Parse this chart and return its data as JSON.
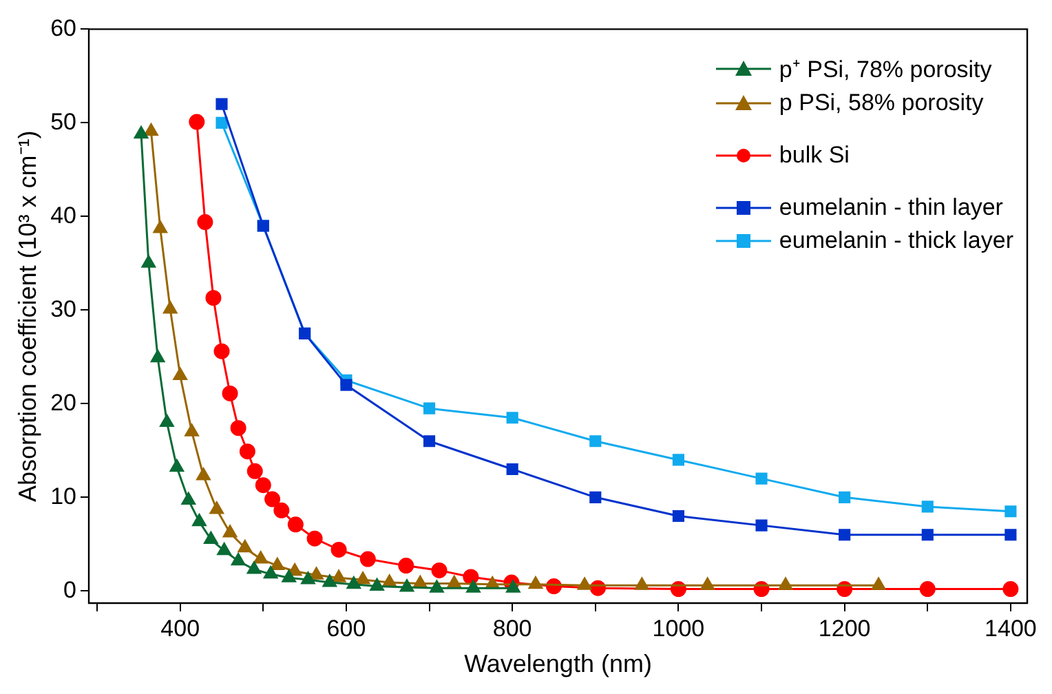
{
  "chart_data": {
    "type": "line",
    "xlabel": "Wavelength (nm)",
    "ylabel": "Absorption coefficient (10³ x cm⁻¹)",
    "xlim": [
      290,
      1420
    ],
    "ylim": [
      -1.3,
      60
    ],
    "xticks": [
      {
        "value": 300,
        "label": null
      },
      400,
      {
        "value": 500,
        "label": null
      },
      600,
      {
        "value": 700,
        "label": null
      },
      800,
      {
        "value": 900,
        "label": null
      },
      1000,
      {
        "value": 1100,
        "label": null
      },
      1200,
      {
        "value": 1300,
        "label": null
      },
      1400
    ],
    "yticks": [
      0,
      10,
      20,
      30,
      40,
      50,
      60
    ],
    "grid": false,
    "legend": "top right",
    "line_style": "solid",
    "series": [
      {
        "name": "p⁺ PSi, 78% porosity",
        "color": "#0a6b35",
        "marker": "triangle",
        "x": [
          353,
          362,
          373,
          384,
          396,
          410,
          423,
          437,
          453,
          470,
          489,
          509,
          531,
          554,
          580,
          609,
          637,
          673,
          709,
          753,
          801
        ],
        "values": [
          48.8,
          35,
          24.9,
          18,
          13.2,
          9.7,
          7.4,
          5.5,
          4.3,
          3.2,
          2.3,
          1.8,
          1.4,
          1.2,
          0.9,
          0.7,
          0.5,
          0.4,
          0.3,
          0.3,
          0.3
        ]
      },
      {
        "name": "p PSi, 58% porosity",
        "color": "#996600",
        "marker": "triangle",
        "x": [
          365,
          376,
          388,
          400,
          414,
          428,
          444,
          460,
          478,
          497,
          517,
          538,
          564,
          591,
          620,
          652,
          689,
          730,
          776,
          828,
          887,
          956,
          1035,
          1129,
          1241
        ],
        "values": [
          49.1,
          38.7,
          30.1,
          23,
          17,
          12.3,
          8.7,
          6.2,
          4.6,
          3.4,
          2.7,
          2.1,
          1.7,
          1.4,
          1.2,
          0.9,
          0.8,
          0.8,
          0.7,
          0.7,
          0.6,
          0.6,
          0.6,
          0.6,
          0.6
        ]
      },
      {
        "name": "bulk Si",
        "color": "#ff0000",
        "marker": "circle",
        "x": [
          420,
          430,
          440,
          450,
          460,
          470,
          481,
          490,
          500,
          511,
          522,
          539,
          562,
          591,
          626,
          672,
          712,
          750,
          799,
          850,
          903,
          1000,
          1100,
          1200,
          1300,
          1400
        ],
        "values": [
          50.1,
          39.4,
          31.3,
          25.6,
          21.1,
          17.4,
          14.9,
          12.8,
          11.3,
          9.8,
          8.6,
          7.1,
          5.6,
          4.4,
          3.4,
          2.7,
          2.2,
          1.5,
          0.9,
          0.5,
          0.3,
          0.2,
          0.2,
          0.2,
          0.2,
          0.2
        ]
      },
      {
        "name": "eumelanin - thin layer",
        "color": "#0033cc",
        "marker": "square",
        "x": [
          450,
          500,
          550,
          600,
          700,
          800,
          900,
          1000,
          1100,
          1200,
          1300,
          1400
        ],
        "values": [
          52,
          39,
          27.5,
          22,
          16,
          13,
          10,
          8,
          7,
          6,
          6,
          6
        ]
      },
      {
        "name": "eumelanin - thick layer",
        "color": "#11aaee",
        "marker": "square",
        "x": [
          450,
          500,
          550,
          600,
          700,
          800,
          900,
          1000,
          1100,
          1200,
          1300,
          1400
        ],
        "values": [
          50,
          39,
          27.5,
          22.5,
          19.5,
          18.5,
          16,
          14,
          12,
          10,
          9,
          8.5
        ]
      }
    ]
  }
}
